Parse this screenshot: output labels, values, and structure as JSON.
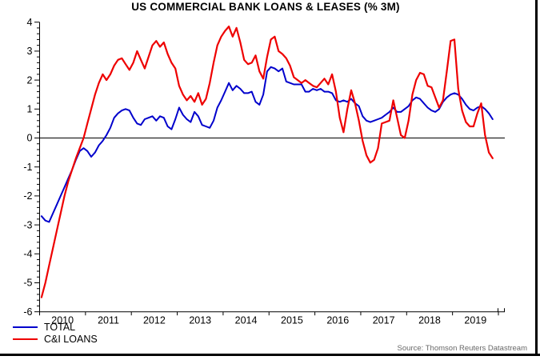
{
  "title": "US COMMERCIAL BANK LOANS & LEASES (% 3M)",
  "source": "Source: Thomson Reuters Datastream",
  "colors": {
    "total": "#0000cc",
    "ci_loans": "#ee0000",
    "axis": "#000000",
    "source_text": "#686868"
  },
  "chart_data": {
    "type": "line",
    "title": "US COMMERCIAL BANK LOANS & LEASES (% 3M)",
    "x_unit": "month",
    "x_start": "2010-01",
    "x_end": "2019-11",
    "x_tick_labels": [
      "2010",
      "2011",
      "2012",
      "2013",
      "2014",
      "2015",
      "2016",
      "2017",
      "2018",
      "2019"
    ],
    "ylim": [
      -6,
      4
    ],
    "y_tick_labels": [
      "-6",
      "-5",
      "-4",
      "-3",
      "-2",
      "-1",
      "0",
      "1",
      "2",
      "3",
      "4"
    ],
    "y_minor_step": 0.2,
    "grid": false,
    "zero_line": true,
    "legend_position": "bottom-left",
    "series": [
      {
        "name": "TOTAL",
        "color": "#0000cc",
        "values": [
          -2.7,
          -2.85,
          -2.9,
          -2.6,
          -2.3,
          -2.0,
          -1.7,
          -1.4,
          -1.1,
          -0.75,
          -0.45,
          -0.35,
          -0.45,
          -0.65,
          -0.5,
          -0.25,
          -0.1,
          0.1,
          0.35,
          0.7,
          0.85,
          0.95,
          1.0,
          0.95,
          0.7,
          0.5,
          0.45,
          0.65,
          0.7,
          0.75,
          0.6,
          0.75,
          0.7,
          0.4,
          0.3,
          0.65,
          1.05,
          0.8,
          0.65,
          0.55,
          0.9,
          0.75,
          0.45,
          0.4,
          0.35,
          0.6,
          1.05,
          1.3,
          1.6,
          1.9,
          1.65,
          1.8,
          1.7,
          1.55,
          1.55,
          1.6,
          1.25,
          1.15,
          1.5,
          2.3,
          2.45,
          2.4,
          2.3,
          2.4,
          1.95,
          1.9,
          1.85,
          1.85,
          1.85,
          1.6,
          1.6,
          1.7,
          1.65,
          1.7,
          1.6,
          1.6,
          1.55,
          1.3,
          1.25,
          1.3,
          1.25,
          1.35,
          1.2,
          1.1,
          0.75,
          0.6,
          0.55,
          0.6,
          0.65,
          0.7,
          0.8,
          0.9,
          1.05,
          0.9,
          0.9,
          1.0,
          1.1,
          1.3,
          1.4,
          1.35,
          1.2,
          1.05,
          0.95,
          0.9,
          1.0,
          1.25,
          1.4,
          1.5,
          1.55,
          1.5,
          1.35,
          1.15,
          1.0,
          0.95,
          1.05,
          1.1,
          1.0,
          0.85,
          0.65
        ]
      },
      {
        "name": "C&I LOANS",
        "color": "#ee0000",
        "values": [
          -5.5,
          -5.0,
          -4.4,
          -3.8,
          -3.2,
          -2.6,
          -2.0,
          -1.5,
          -1.1,
          -0.7,
          -0.35,
          0.0,
          0.5,
          1.0,
          1.5,
          1.9,
          2.2,
          2.0,
          2.2,
          2.5,
          2.7,
          2.75,
          2.55,
          2.35,
          2.6,
          3.0,
          2.7,
          2.4,
          2.8,
          3.2,
          3.35,
          3.15,
          3.3,
          2.9,
          2.6,
          2.4,
          1.8,
          1.5,
          1.3,
          1.45,
          1.25,
          1.55,
          1.15,
          1.35,
          1.9,
          2.6,
          3.2,
          3.5,
          3.7,
          3.85,
          3.5,
          3.8,
          3.3,
          2.7,
          2.55,
          2.6,
          2.85,
          2.3,
          2.05,
          2.8,
          3.4,
          3.5,
          3.0,
          2.9,
          2.75,
          2.5,
          2.1,
          2.0,
          1.9,
          2.0,
          1.9,
          1.8,
          1.75,
          1.9,
          2.05,
          1.85,
          2.2,
          1.6,
          0.7,
          0.2,
          1.0,
          1.65,
          1.2,
          0.6,
          -0.1,
          -0.6,
          -0.85,
          -0.75,
          -0.35,
          0.5,
          0.55,
          0.6,
          1.3,
          0.7,
          0.1,
          0.0,
          0.6,
          1.5,
          2.0,
          2.25,
          2.2,
          1.8,
          1.75,
          1.4,
          1.05,
          1.3,
          2.3,
          3.35,
          3.4,
          1.7,
          0.95,
          0.55,
          0.4,
          0.4,
          0.85,
          1.2,
          0.1,
          -0.5,
          -0.7
        ]
      }
    ]
  }
}
